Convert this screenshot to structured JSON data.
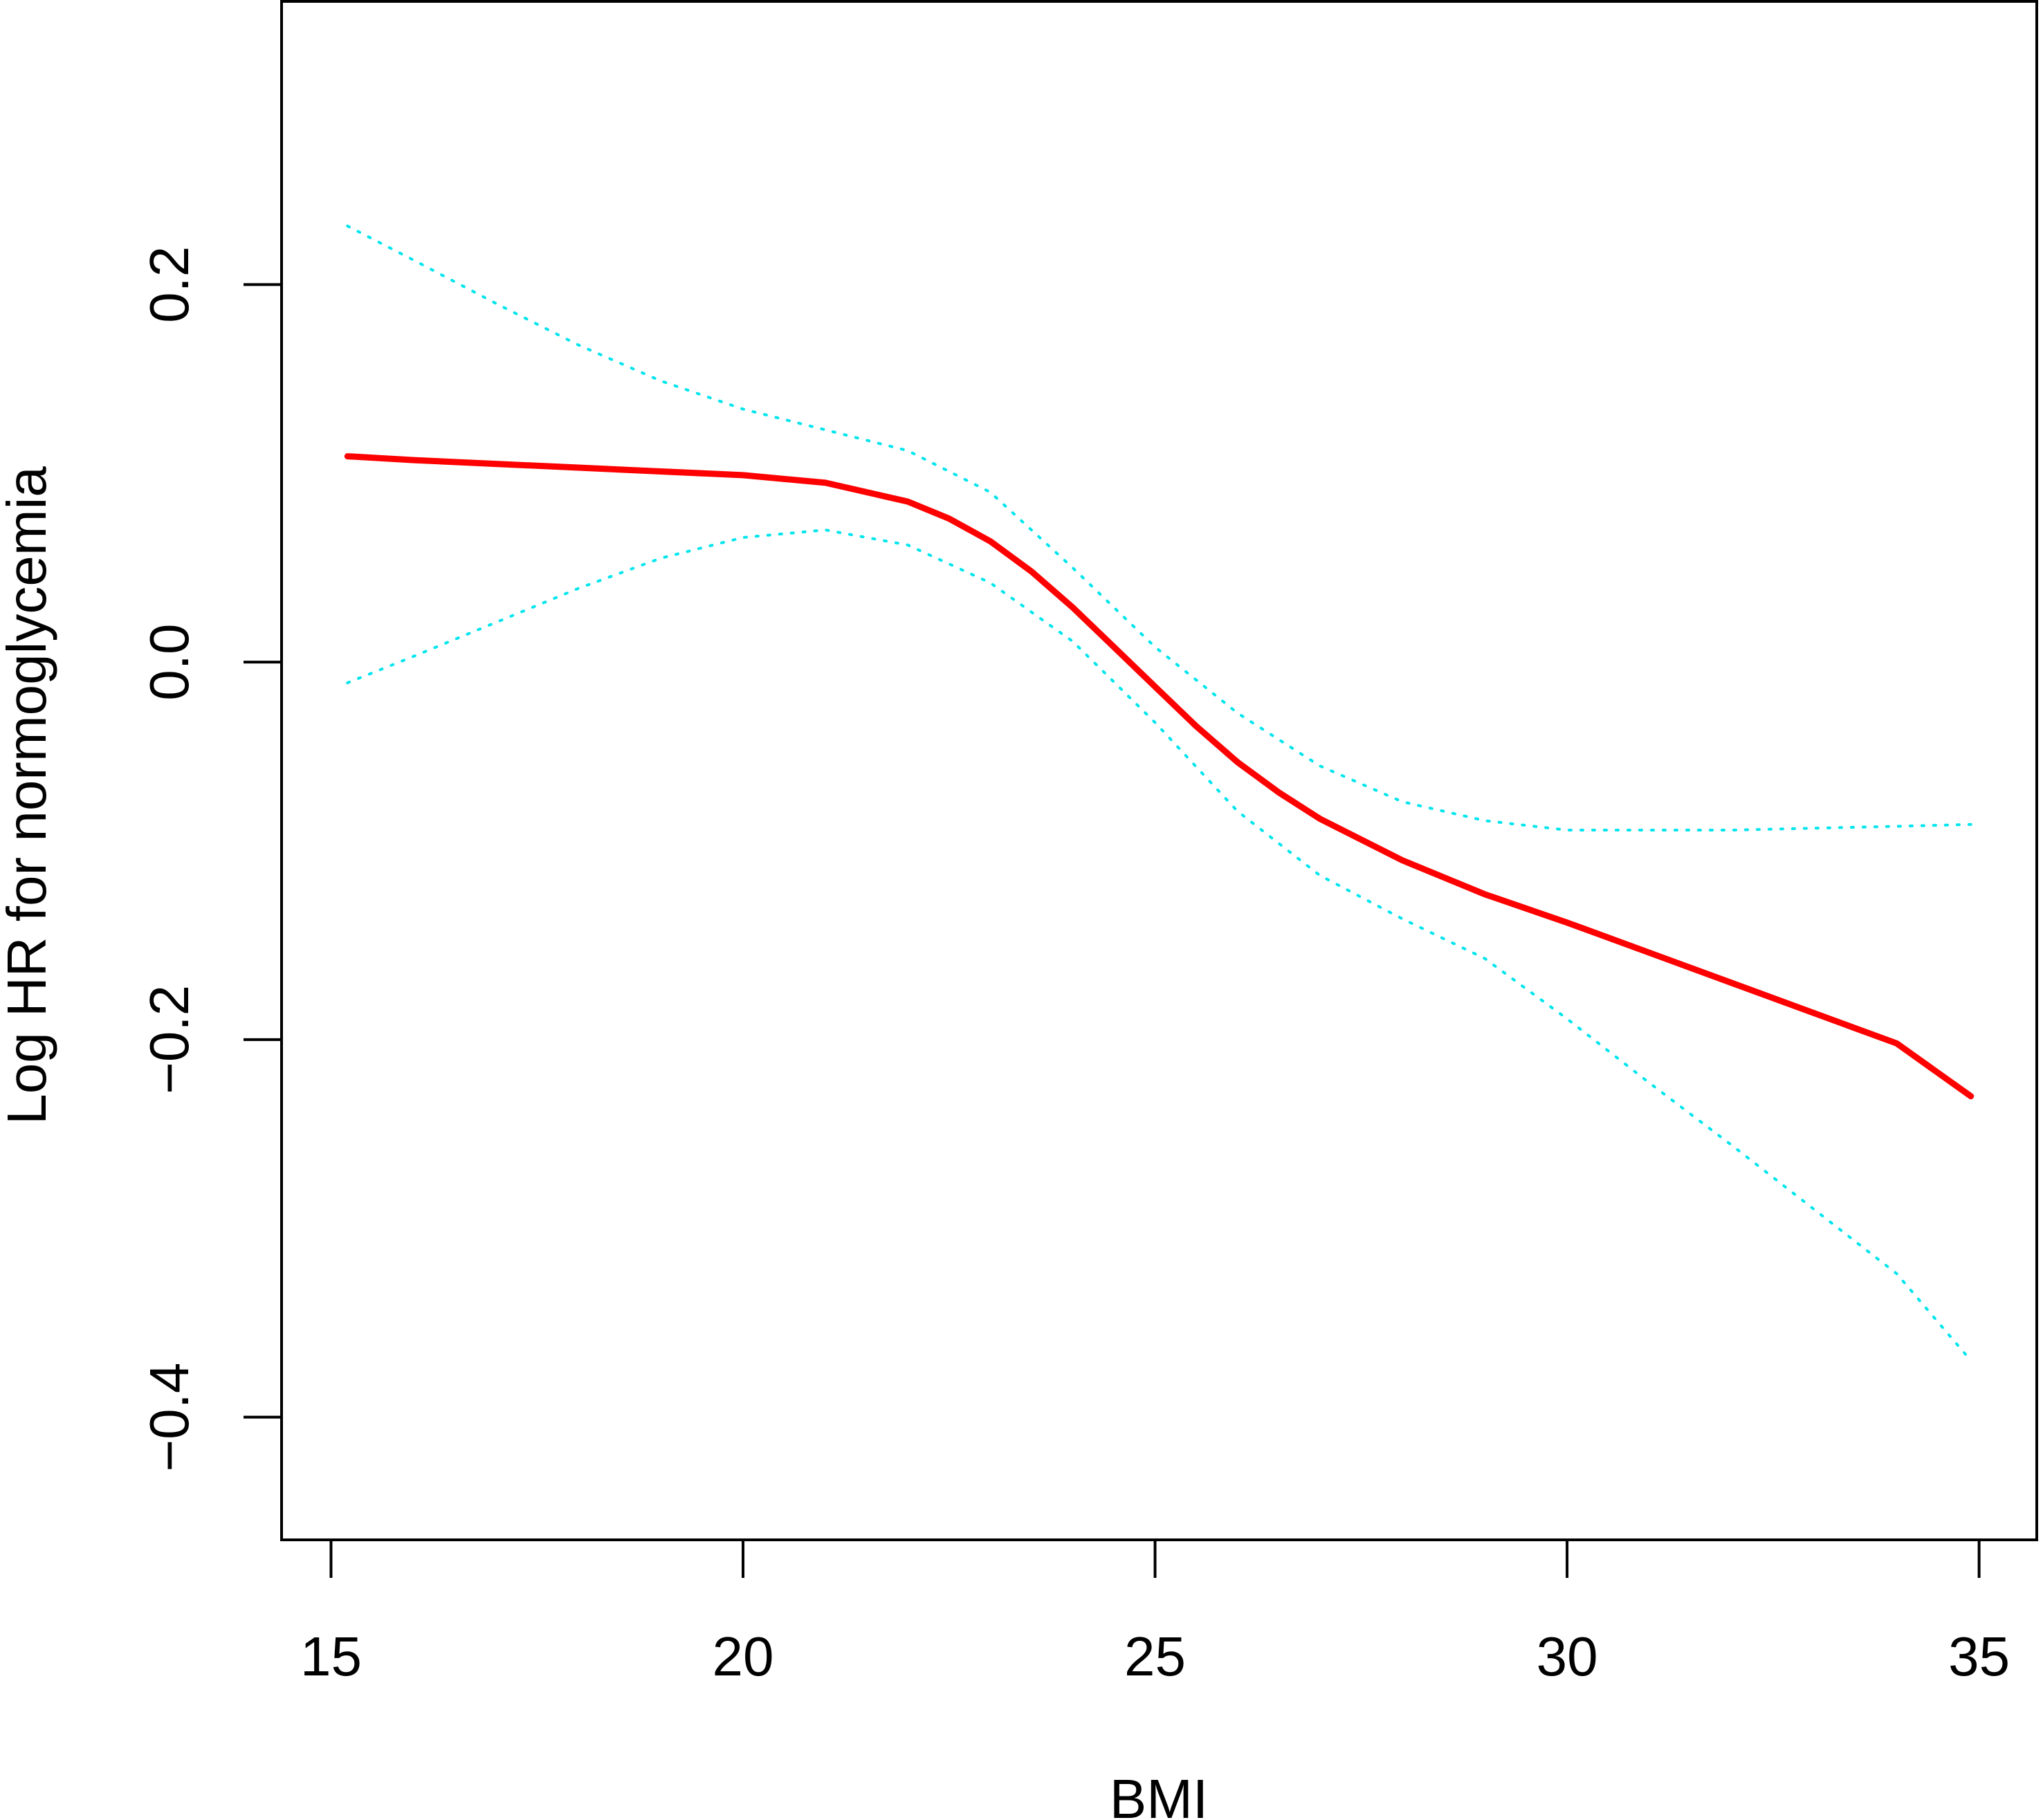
{
  "chart_data": {
    "type": "line",
    "title": "",
    "xlabel": "BMI",
    "ylabel": "Log HR for normoglycemia",
    "xlim": [
      14.4,
      35.7
    ],
    "ylim": [
      -0.465,
      0.35
    ],
    "xticks": [
      15,
      20,
      25,
      30,
      35
    ],
    "xtick_labels": [
      "15",
      "20",
      "25",
      "30",
      "35"
    ],
    "yticks": [
      -0.4,
      -0.2,
      0.0,
      0.2
    ],
    "ytick_labels": [
      "−0.4",
      "−0.2",
      "0.0",
      "0.2"
    ],
    "grid": false,
    "legend": "none",
    "series": [
      {
        "role": "estimate",
        "style": "solid",
        "color": "#ff0000",
        "x": [
          15.2,
          16,
          17,
          18,
          19,
          20,
          21,
          22,
          22.5,
          23,
          23.5,
          24,
          24.5,
          25,
          25.5,
          26,
          26.5,
          27,
          28,
          29,
          30,
          31,
          32,
          33,
          34,
          34.9
        ],
        "y": [
          0.109,
          0.107,
          0.105,
          0.103,
          0.101,
          0.099,
          0.095,
          0.085,
          0.076,
          0.064,
          0.048,
          0.029,
          0.008,
          -0.013,
          -0.034,
          -0.053,
          -0.069,
          -0.083,
          -0.105,
          -0.123,
          -0.138,
          -0.154,
          -0.17,
          -0.186,
          -0.202,
          -0.23
        ]
      },
      {
        "role": "upper-ci",
        "style": "dotted",
        "color": "#00e5ee",
        "x": [
          15.2,
          16,
          17,
          18,
          19,
          20,
          21,
          22,
          23,
          24,
          25,
          26,
          27,
          28,
          29,
          30,
          31,
          32,
          33,
          34,
          34.9
        ],
        "y": [
          0.231,
          0.213,
          0.19,
          0.168,
          0.149,
          0.134,
          0.123,
          0.112,
          0.09,
          0.05,
          0.008,
          -0.027,
          -0.055,
          -0.074,
          -0.084,
          -0.089,
          -0.089,
          -0.089,
          -0.088,
          -0.087,
          -0.086
        ]
      },
      {
        "role": "lower-ci",
        "style": "dotted",
        "color": "#00e5ee",
        "x": [
          15.2,
          16,
          17,
          18,
          19,
          20,
          21,
          22,
          23,
          24,
          25,
          26,
          27,
          28,
          29,
          30,
          31,
          32,
          33,
          34,
          34.9
        ],
        "y": [
          -0.011,
          0.003,
          0.021,
          0.039,
          0.055,
          0.066,
          0.07,
          0.062,
          0.042,
          0.011,
          -0.032,
          -0.079,
          -0.113,
          -0.136,
          -0.157,
          -0.189,
          -0.223,
          -0.256,
          -0.29,
          -0.324,
          -0.37
        ]
      }
    ]
  }
}
